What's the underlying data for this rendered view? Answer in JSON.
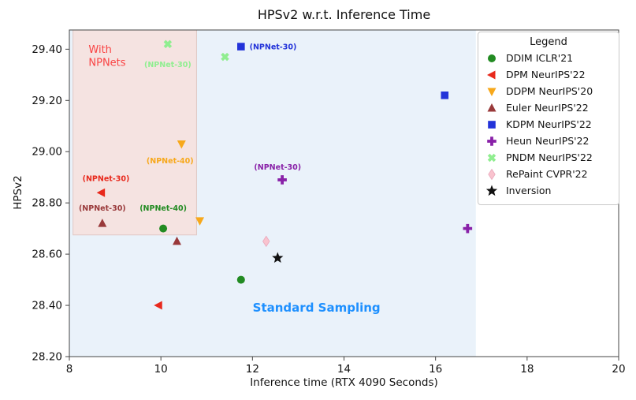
{
  "chart_data": {
    "type": "scatter",
    "title": "HPSv2 w.r.t. Inference Time",
    "xlabel": "Inference time (RTX 4090 Seconds)",
    "ylabel": "HPSv2",
    "legend_title": "Legend",
    "xlim": [
      8,
      20
    ],
    "ylim": [
      28.2,
      29.475
    ],
    "xticks": [
      8,
      10,
      12,
      14,
      16,
      18,
      20
    ],
    "yticks": [
      28.2,
      28.4,
      28.6,
      28.8,
      29.0,
      29.2,
      29.4
    ],
    "grid": false,
    "legend_position": "upper right",
    "series": [
      {
        "name": "DDIM ICLR'21",
        "marker": "circle",
        "color": "#228b22",
        "points": [
          [
            10.05,
            28.7
          ],
          [
            11.75,
            28.5
          ]
        ]
      },
      {
        "name": "DPM NeurIPS'22",
        "marker": "triangle-left",
        "color": "#e8291c",
        "points": [
          [
            8.7,
            28.84
          ],
          [
            9.95,
            28.4
          ]
        ]
      },
      {
        "name": "DDPM NeurIPS'20",
        "marker": "triangle-down",
        "color": "#f7a81b",
        "points": [
          [
            10.45,
            29.03
          ],
          [
            10.85,
            28.73
          ]
        ]
      },
      {
        "name": "Euler NeurIPS'22",
        "marker": "triangle-up",
        "color": "#99393a",
        "points": [
          [
            8.72,
            28.72
          ],
          [
            10.35,
            28.65
          ]
        ]
      },
      {
        "name": "KDPM NeurIPS'22",
        "marker": "square",
        "color": "#2333d9",
        "points": [
          [
            11.75,
            29.41
          ],
          [
            16.2,
            29.22
          ]
        ]
      },
      {
        "name": "Heun NeurIPS'22",
        "marker": "plus",
        "color": "#8921a8",
        "points": [
          [
            12.65,
            28.89
          ],
          [
            16.7,
            28.7
          ]
        ]
      },
      {
        "name": "PNDM NeurIPS'22",
        "marker": "x",
        "color": "#90ee90",
        "points": [
          [
            10.15,
            29.42
          ],
          [
            11.4,
            29.37
          ]
        ]
      },
      {
        "name": "RePaint CVPR'22",
        "marker": "diamond",
        "color": "#f9c3ce",
        "points": [
          [
            12.3,
            28.65
          ]
        ]
      },
      {
        "name": "Inversion",
        "marker": "star",
        "color": "#111111",
        "points": [
          [
            12.55,
            28.585
          ]
        ]
      }
    ],
    "annotations": [
      {
        "text": "(NPNet-30)",
        "x": 12.45,
        "y": 29.4,
        "color": "#2333d9"
      },
      {
        "text": "(NPNet-30)",
        "x": 10.15,
        "y": 29.33,
        "color": "#90ee90"
      },
      {
        "text": "(NPNet-40)",
        "x": 10.2,
        "y": 28.955,
        "color": "#f7a81b"
      },
      {
        "text": "(NPNet-30)",
        "x": 8.8,
        "y": 28.885,
        "color": "#e8291c"
      },
      {
        "text": "(NPNet-30)",
        "x": 8.72,
        "y": 28.77,
        "color": "#99393a"
      },
      {
        "text": "(NPNet-40)",
        "x": 10.05,
        "y": 28.77,
        "color": "#228b22"
      },
      {
        "text": "(NPNet-30)",
        "x": 12.55,
        "y": 28.93,
        "color": "#8921a8"
      },
      {
        "text": "With\nNPNets",
        "x": 8.42,
        "y": 29.385,
        "color": "#f94343",
        "size": 13,
        "align": "start",
        "bold": false
      },
      {
        "text": "Standard Sampling",
        "x": 13.4,
        "y": 28.375,
        "color": "#1e90ff",
        "size": 15,
        "bold": true
      }
    ],
    "regions": [
      {
        "name": "standard-sampling-region",
        "x0": 8.0,
        "x1": 16.88,
        "y0": 28.2,
        "y1": 29.475,
        "color": "#eaf2fa"
      },
      {
        "name": "with-npnets-region",
        "x0": 8.08,
        "x1": 10.78,
        "y0": 28.675,
        "y1": 29.475,
        "color": "#f5e3e1",
        "border": "#e0c8c4"
      }
    ]
  }
}
